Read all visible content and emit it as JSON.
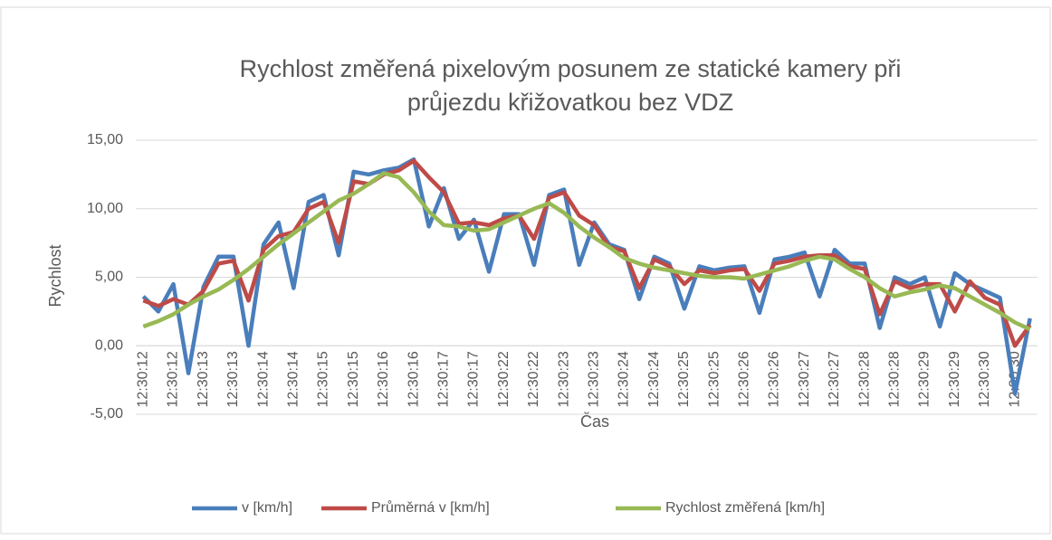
{
  "chart_data": {
    "type": "line",
    "title": "Rychlost změřená pixelovým posunem ze statické kamery při",
    "subtitle": "průjezdu křižovatkou bez VDZ",
    "x_label": "Čas",
    "y_label": "Rychlost",
    "categories": [
      "12:30:12",
      null,
      "12:30:12",
      null,
      "12:30:13",
      null,
      "12:30:13",
      null,
      "12:30:14",
      null,
      "12:30:14",
      null,
      "12:30:15",
      null,
      "12:30:15",
      null,
      "12:30:16",
      null,
      "12:30:16",
      null,
      "12:30:17",
      null,
      "12:30:17",
      null,
      "12:30:22",
      null,
      "12:30:22",
      null,
      "12:30:23",
      null,
      "12:30:23",
      null,
      "12:30:24",
      null,
      "12:30:24",
      null,
      "12:30:25",
      null,
      "12:30:25",
      null,
      "12:30:26",
      null,
      "12:30:26",
      null,
      "12:30:27",
      null,
      "12:30:27",
      null,
      "12:30:28",
      null,
      "12:30:28",
      null,
      "12:30:29",
      null,
      "12:30:29",
      null,
      "12:30:30",
      null,
      "12:30:30",
      null
    ],
    "series": [
      {
        "name": "v [km/h]",
        "color": "#4a7ebb",
        "values": [
          3.6,
          2.5,
          4.5,
          -2.0,
          4.3,
          6.5,
          6.5,
          0.0,
          7.4,
          9.0,
          4.2,
          10.5,
          11.0,
          6.6,
          12.7,
          12.5,
          12.8,
          13.0,
          13.6,
          8.7,
          11.5,
          7.8,
          9.2,
          5.4,
          9.6,
          9.6,
          5.9,
          11.0,
          11.4,
          5.9,
          9.0,
          7.4,
          7.0,
          3.4,
          6.5,
          6.0,
          2.7,
          5.8,
          5.5,
          5.7,
          5.8,
          2.4,
          6.3,
          6.5,
          6.8,
          3.6,
          7.0,
          6.0,
          6.0,
          1.3,
          5.0,
          4.5,
          5.0,
          1.4,
          5.3,
          4.5,
          4.0,
          3.5,
          -3.5,
          2.0
        ]
      },
      {
        "name": "Průměrná v [km/h]",
        "color": "#be4b48",
        "values": [
          3.3,
          2.9,
          3.4,
          3.0,
          4.0,
          6.0,
          6.2,
          3.3,
          7.0,
          8.0,
          8.3,
          10.0,
          10.5,
          7.5,
          12.0,
          11.8,
          12.5,
          12.8,
          13.5,
          12.3,
          11.2,
          8.9,
          9.0,
          8.8,
          9.3,
          9.5,
          7.8,
          10.8,
          11.2,
          9.5,
          8.8,
          7.2,
          6.9,
          4.2,
          6.3,
          5.8,
          4.5,
          5.5,
          5.3,
          5.5,
          5.6,
          4.0,
          6.0,
          6.2,
          6.5,
          6.6,
          6.6,
          5.8,
          5.6,
          2.3,
          4.7,
          4.2,
          4.5,
          4.5,
          2.5,
          4.7,
          3.5,
          3.0,
          0.0,
          1.5
        ]
      },
      {
        "name": "Rychlost změřená [km/h]",
        "color": "#98b954",
        "values": [
          1.4,
          1.8,
          2.3,
          3.0,
          3.6,
          4.1,
          4.8,
          5.6,
          6.5,
          7.4,
          8.2,
          9.0,
          9.8,
          10.6,
          11.1,
          11.8,
          12.6,
          12.3,
          11.2,
          9.8,
          8.8,
          8.7,
          8.4,
          8.5,
          9.0,
          9.5,
          10.0,
          10.4,
          9.7,
          8.7,
          7.9,
          7.2,
          6.4,
          6.0,
          5.7,
          5.5,
          5.3,
          5.1,
          5.0,
          5.0,
          4.9,
          5.2,
          5.5,
          5.8,
          6.2,
          6.5,
          6.3,
          5.6,
          5.0,
          4.2,
          3.6,
          3.9,
          4.1,
          4.4,
          4.2,
          3.6,
          3.0,
          2.4,
          1.7,
          1.2
        ]
      }
    ],
    "ylim": [
      -5,
      15
    ],
    "yticks": [
      {
        "value": -5,
        "label": "-5,00"
      },
      {
        "value": 0,
        "label": "0,00"
      },
      {
        "value": 5,
        "label": "5,00"
      },
      {
        "value": 10,
        "label": "10,00"
      },
      {
        "value": 15,
        "label": "15,00"
      }
    ],
    "grid": true,
    "legend": "bottom"
  }
}
